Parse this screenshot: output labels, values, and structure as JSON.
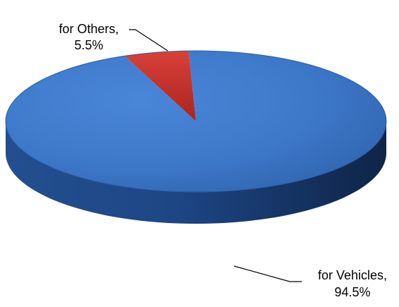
{
  "chart_data": {
    "type": "pie",
    "style": "3d",
    "slices": [
      {
        "label": "for Vehicles,",
        "percent_text": "94.5%",
        "value": 94.5,
        "color": "#3b74c6",
        "side_color": "#173a73"
      },
      {
        "label": "for Others,",
        "percent_text": "5.5%",
        "value": 5.5,
        "color": "#c7332e",
        "side_color": "#7f1d1a"
      }
    ]
  }
}
